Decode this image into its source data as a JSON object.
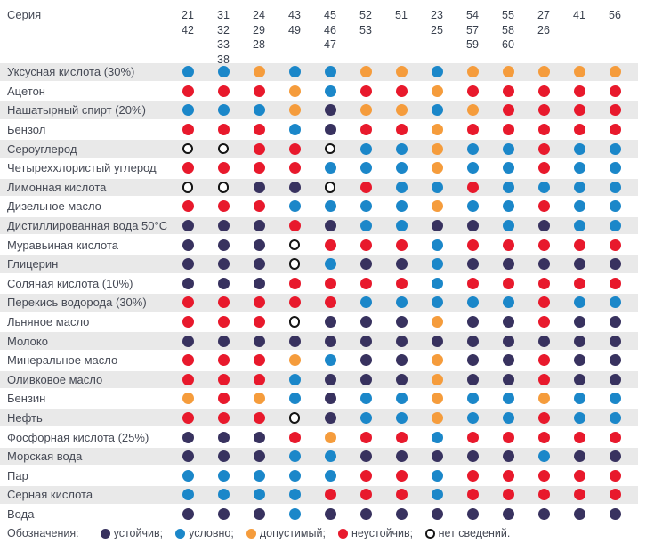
{
  "colors": {
    "status": {
      "u": "#38325f",
      "c": "#1b87c9",
      "d": "#f59c3c",
      "n": "#e8192c"
    },
    "no_data_border": "#141414",
    "stripe": "#e9e9e9",
    "text": "#464a55"
  },
  "header": {
    "series_label": "Серия"
  },
  "legend": {
    "title": "Обозначения:",
    "items": [
      {
        "code": "u",
        "label": "устойчив;"
      },
      {
        "code": "c",
        "label": "условно;"
      },
      {
        "code": "d",
        "label": "допустимый;"
      },
      {
        "code": "n",
        "label": "неустойчив;"
      },
      {
        "code": "x",
        "label": "нет сведений."
      }
    ]
  },
  "chart_data": {
    "type": "heatmap",
    "value_meaning": {
      "u": "устойчив",
      "c": "условно",
      "d": "допустимый",
      "n": "неустойчив",
      "x": "нет сведений"
    },
    "columns": [
      [
        "21",
        "42"
      ],
      [
        "31",
        "32",
        "33",
        "38"
      ],
      [
        "24",
        "29",
        "28"
      ],
      [
        "43",
        "49"
      ],
      [
        "45",
        "46",
        "47"
      ],
      [
        "52",
        "53"
      ],
      [
        "51"
      ],
      [
        "23",
        "25"
      ],
      [
        "54",
        "57",
        "59"
      ],
      [
        "55",
        "58",
        "60"
      ],
      [
        "27",
        "26"
      ],
      [
        "41"
      ],
      [
        "56"
      ]
    ],
    "rows": [
      {
        "label": "Уксусная кислота (30%)",
        "values": [
          "c",
          "c",
          "d",
          "c",
          "c",
          "d",
          "d",
          "c",
          "d",
          "d",
          "d",
          "d",
          "d"
        ]
      },
      {
        "label": "Ацетон",
        "values": [
          "n",
          "n",
          "n",
          "d",
          "c",
          "n",
          "n",
          "d",
          "n",
          "n",
          "n",
          "n",
          "n"
        ]
      },
      {
        "label": "Нашатырный спирт (20%)",
        "values": [
          "c",
          "c",
          "c",
          "d",
          "u",
          "d",
          "d",
          "c",
          "d",
          "n",
          "n",
          "n",
          "n"
        ]
      },
      {
        "label": "Бензол",
        "values": [
          "n",
          "n",
          "n",
          "c",
          "u",
          "n",
          "n",
          "d",
          "n",
          "n",
          "n",
          "n",
          "n"
        ]
      },
      {
        "label": "Сероуглерод",
        "values": [
          "x",
          "x",
          "n",
          "n",
          "x",
          "c",
          "c",
          "d",
          "c",
          "c",
          "n",
          "c",
          "c"
        ]
      },
      {
        "label": "Четыреххлористый углерод",
        "values": [
          "n",
          "n",
          "n",
          "n",
          "c",
          "c",
          "c",
          "d",
          "c",
          "c",
          "n",
          "c",
          "c"
        ]
      },
      {
        "label": "Лимонная кислота",
        "values": [
          "x",
          "x",
          "u",
          "u",
          "x",
          "n",
          "c",
          "c",
          "n",
          "c",
          "c",
          "c",
          "c"
        ]
      },
      {
        "label": "Дизельное масло",
        "values": [
          "n",
          "n",
          "n",
          "c",
          "c",
          "c",
          "c",
          "d",
          "c",
          "c",
          "n",
          "c",
          "c"
        ]
      },
      {
        "label": "Дистиллированная вода 50°C",
        "values": [
          "u",
          "u",
          "u",
          "n",
          "u",
          "c",
          "c",
          "u",
          "u",
          "c",
          "u",
          "c",
          "c"
        ]
      },
      {
        "label": "Муравьиная кислота",
        "values": [
          "u",
          "u",
          "u",
          "x",
          "n",
          "n",
          "n",
          "c",
          "n",
          "n",
          "n",
          "n",
          "n"
        ]
      },
      {
        "label": "Глицерин",
        "values": [
          "u",
          "u",
          "u",
          "x",
          "c",
          "u",
          "u",
          "c",
          "u",
          "u",
          "u",
          "u",
          "u"
        ]
      },
      {
        "label": "Соляная кислота (10%)",
        "values": [
          "u",
          "u",
          "u",
          "n",
          "n",
          "n",
          "n",
          "c",
          "n",
          "n",
          "n",
          "n",
          "n"
        ]
      },
      {
        "label": "Перекись водорода (30%)",
        "values": [
          "n",
          "n",
          "n",
          "n",
          "n",
          "c",
          "c",
          "c",
          "c",
          "c",
          "n",
          "c",
          "c"
        ]
      },
      {
        "label": "Льняное масло",
        "values": [
          "n",
          "n",
          "n",
          "x",
          "u",
          "u",
          "u",
          "d",
          "u",
          "u",
          "n",
          "u",
          "u"
        ]
      },
      {
        "label": "Молоко",
        "values": [
          "u",
          "u",
          "u",
          "u",
          "u",
          "u",
          "u",
          "u",
          "u",
          "u",
          "u",
          "u",
          "u"
        ]
      },
      {
        "label": "Минеральное масло",
        "values": [
          "n",
          "n",
          "n",
          "d",
          "c",
          "u",
          "u",
          "d",
          "u",
          "u",
          "n",
          "u",
          "u"
        ]
      },
      {
        "label": "Оливковое масло",
        "values": [
          "n",
          "n",
          "n",
          "c",
          "u",
          "u",
          "u",
          "d",
          "u",
          "u",
          "n",
          "u",
          "u"
        ]
      },
      {
        "label": "Бензин",
        "values": [
          "d",
          "n",
          "d",
          "c",
          "u",
          "c",
          "c",
          "d",
          "c",
          "c",
          "d",
          "c",
          "c"
        ]
      },
      {
        "label": "Нефть",
        "values": [
          "n",
          "n",
          "n",
          "x",
          "u",
          "c",
          "c",
          "d",
          "c",
          "c",
          "n",
          "c",
          "c"
        ]
      },
      {
        "label": "Фосфорная кислота (25%)",
        "values": [
          "u",
          "u",
          "u",
          "n",
          "d",
          "n",
          "n",
          "c",
          "n",
          "n",
          "n",
          "n",
          "n"
        ]
      },
      {
        "label": "Морская вода",
        "values": [
          "u",
          "u",
          "u",
          "c",
          "c",
          "u",
          "u",
          "u",
          "u",
          "u",
          "c",
          "u",
          "u"
        ]
      },
      {
        "label": "Пар",
        "values": [
          "c",
          "c",
          "c",
          "c",
          "c",
          "n",
          "n",
          "c",
          "n",
          "n",
          "n",
          "n",
          "n"
        ]
      },
      {
        "label": "Серная кислота",
        "values": [
          "c",
          "c",
          "c",
          "c",
          "n",
          "n",
          "n",
          "c",
          "n",
          "n",
          "n",
          "n",
          "n"
        ]
      },
      {
        "label": "Вода",
        "values": [
          "u",
          "u",
          "u",
          "c",
          "u",
          "u",
          "u",
          "u",
          "u",
          "u",
          "u",
          "u",
          "u"
        ]
      }
    ]
  }
}
